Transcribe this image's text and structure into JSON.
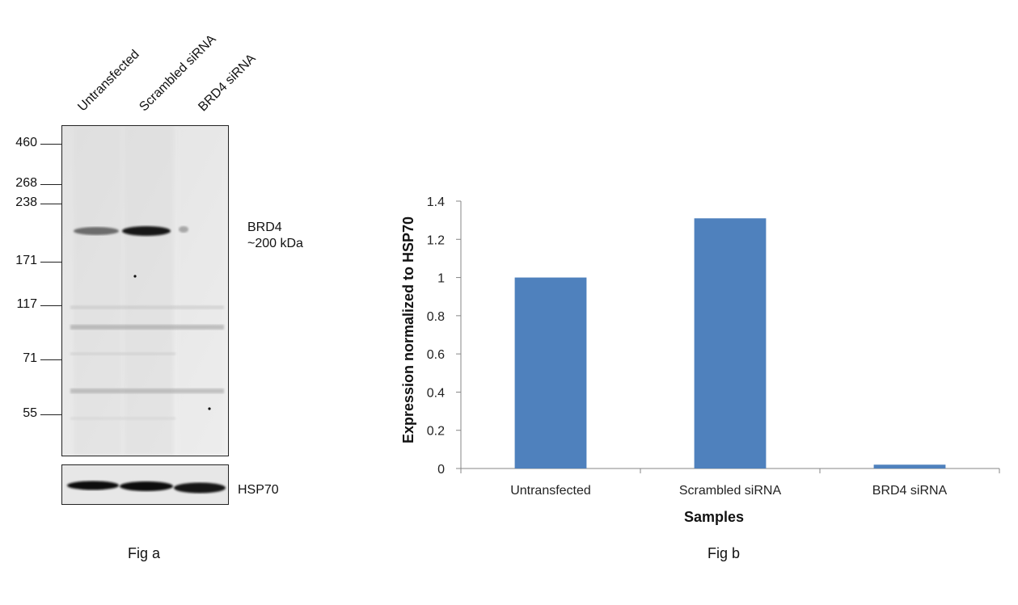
{
  "figure_a": {
    "caption": "Fig a",
    "lanes": [
      "Untransfected",
      "Scrambled siRNA",
      "BRD4 siRNA"
    ],
    "markers": [
      "460",
      "268",
      "238",
      "171",
      "117",
      "71",
      "55"
    ],
    "target_label": "BRD4",
    "target_size": "~200 kDa",
    "loading_control": "HSP70"
  },
  "figure_b": {
    "caption": "Fig b"
  },
  "chart_data": {
    "type": "bar",
    "categories": [
      "Untransfected",
      "Scrambled siRNA",
      "BRD4 siRNA"
    ],
    "values": [
      1.0,
      1.31,
      0.02
    ],
    "xlabel": "Samples",
    "ylabel": "Expression  normalized to HSP70",
    "ylim": [
      0,
      1.4
    ],
    "yticks": [
      0,
      0.2,
      0.4,
      0.6,
      0.8,
      1,
      1.2,
      1.4
    ],
    "ytick_labels": [
      "0",
      "0.2",
      "0.4",
      "0.6",
      "0.8",
      "1",
      "1.2",
      "1.4"
    ],
    "bar_color": "#4f81bd",
    "grid": false,
    "legend": "none"
  }
}
